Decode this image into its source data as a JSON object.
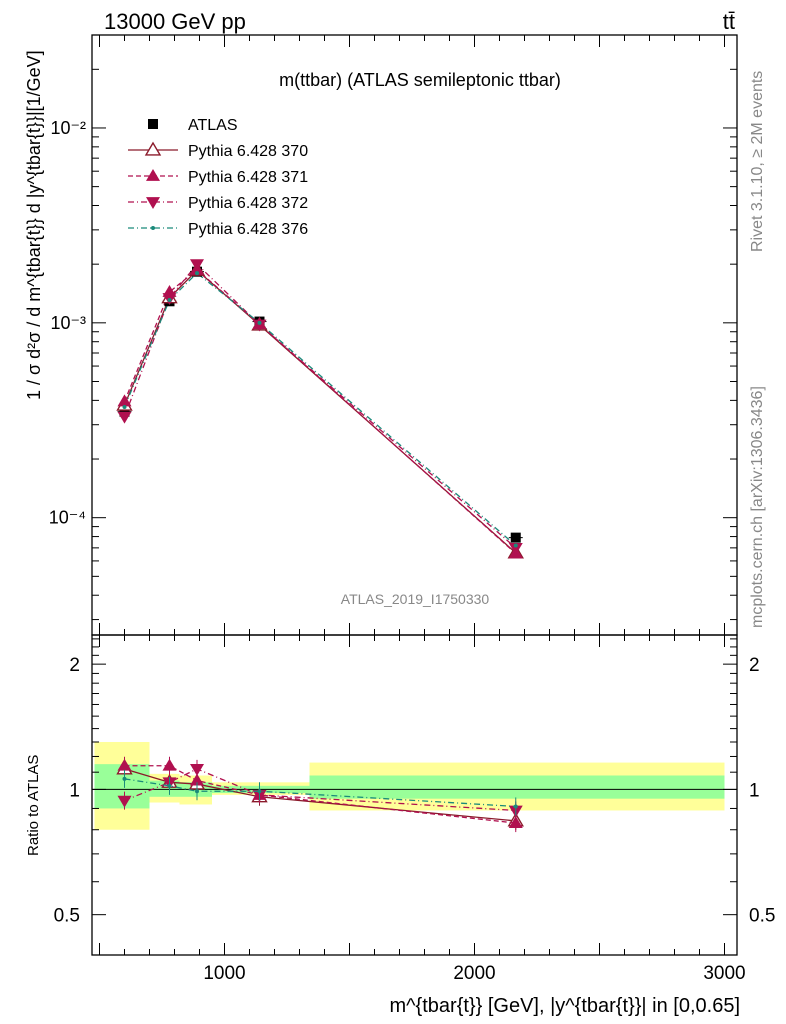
{
  "header": {
    "energy_label": "13000 GeV pp",
    "process_label": "tt̄"
  },
  "side_labels": {
    "rivet": "Rivet 3.1.10, ≥ 2M events",
    "mcplots": "mcplots.cern.ch [arXiv:1306.3436]"
  },
  "chart_data": [
    {
      "type": "line",
      "panel": "main",
      "title": "m(ttbar) (ATLAS semileptonic ttbar)",
      "watermark": "ATLAS_2019_I1750330",
      "ylabel": "1 / σ d²σ / d m^{tbar{t}} d |y^{tbar{t}}|[1/GeV]",
      "yscale": "log",
      "ylim": [
        2.5e-05,
        0.03
      ],
      "xlim": [
        470,
        3050
      ],
      "ytick_labels": [
        "10⁻⁴",
        "10⁻³",
        "10⁻²"
      ],
      "ytick_values": [
        0.0001,
        0.001,
        0.01
      ],
      "legend_position": "top-left",
      "x": [
        600,
        780,
        890,
        1140,
        2165
      ],
      "bin_edges": [
        480,
        700,
        820,
        950,
        1330,
        3000
      ],
      "series": [
        {
          "name": "ATLAS",
          "color": "#000000",
          "marker": "square",
          "values": [
            0.00035,
            0.00129,
            0.00183,
            0.001015,
            7.9e-05
          ]
        },
        {
          "name": "Pythia 6.428 370",
          "color": "#8b1a2b",
          "marker": "triangle-up-open",
          "dash": "solid",
          "values": [
            0.000378,
            0.001345,
            0.00186,
            0.000975,
            6.6e-05
          ]
        },
        {
          "name": "Pythia 6.428 371",
          "color": "#b0104f",
          "marker": "triangle-up",
          "dash": "dashed",
          "values": [
            0.000395,
            0.00144,
            0.00187,
            0.000985,
            6.55e-05
          ]
        },
        {
          "name": "Pythia 6.428 372",
          "color": "#b0104f",
          "marker": "triangle-down",
          "dash": "dashdot",
          "values": [
            0.00033,
            0.00134,
            0.002,
            0.00098,
            7e-05
          ]
        },
        {
          "name": "Pythia 6.428 376",
          "color": "#1a8a7a",
          "marker": "dot",
          "dash": "dashdot",
          "values": [
            0.00037,
            0.00131,
            0.0018,
            0.001,
            7.2e-05
          ]
        }
      ]
    },
    {
      "type": "line",
      "panel": "ratio",
      "ylabel": "Ratio to ATLAS",
      "yscale": "log",
      "ylim": [
        0.4,
        2.35
      ],
      "ytick_values": [
        0.5,
        1,
        2
      ],
      "ytick_labels": [
        "0.5",
        "1",
        "2"
      ],
      "xlabel": "m^{tbar{t}} [GeV], |y^{tbar{t}}| in [0,0.65]",
      "xtick_values": [
        1000,
        2000,
        3000
      ],
      "xtick_labels": [
        "1000",
        "2000",
        "3000"
      ],
      "x": [
        600,
        780,
        890,
        1140,
        2165
      ],
      "bands": [
        {
          "x_from": 480,
          "x_to": 700,
          "yellow": [
            0.8,
            1.3
          ],
          "green": [
            0.9,
            1.15
          ]
        },
        {
          "x_from": 700,
          "x_to": 820,
          "yellow": [
            0.93,
            1.09
          ],
          "green": [
            0.96,
            1.05
          ]
        },
        {
          "x_from": 820,
          "x_to": 950,
          "yellow": [
            0.92,
            1.08
          ],
          "green": [
            0.96,
            1.04
          ]
        },
        {
          "x_from": 950,
          "x_to": 1340,
          "yellow": [
            0.97,
            1.04
          ],
          "green": [
            0.98,
            1.02
          ]
        },
        {
          "x_from": 1340,
          "x_to": 3000,
          "yellow": [
            0.89,
            1.16
          ],
          "green": [
            0.95,
            1.08
          ]
        }
      ],
      "series": [
        {
          "name": "Pythia 6.428 370",
          "values": [
            1.12,
            1.04,
            1.03,
            0.96,
            0.84
          ]
        },
        {
          "name": "Pythia 6.428 371",
          "values": [
            1.14,
            1.14,
            1.05,
            0.97,
            0.83
          ]
        },
        {
          "name": "Pythia 6.428 372",
          "values": [
            0.94,
            1.04,
            1.12,
            0.97,
            0.89
          ]
        },
        {
          "name": "Pythia 6.428 376",
          "values": [
            1.06,
            1.02,
            0.99,
            0.99,
            0.91
          ]
        }
      ]
    }
  ]
}
